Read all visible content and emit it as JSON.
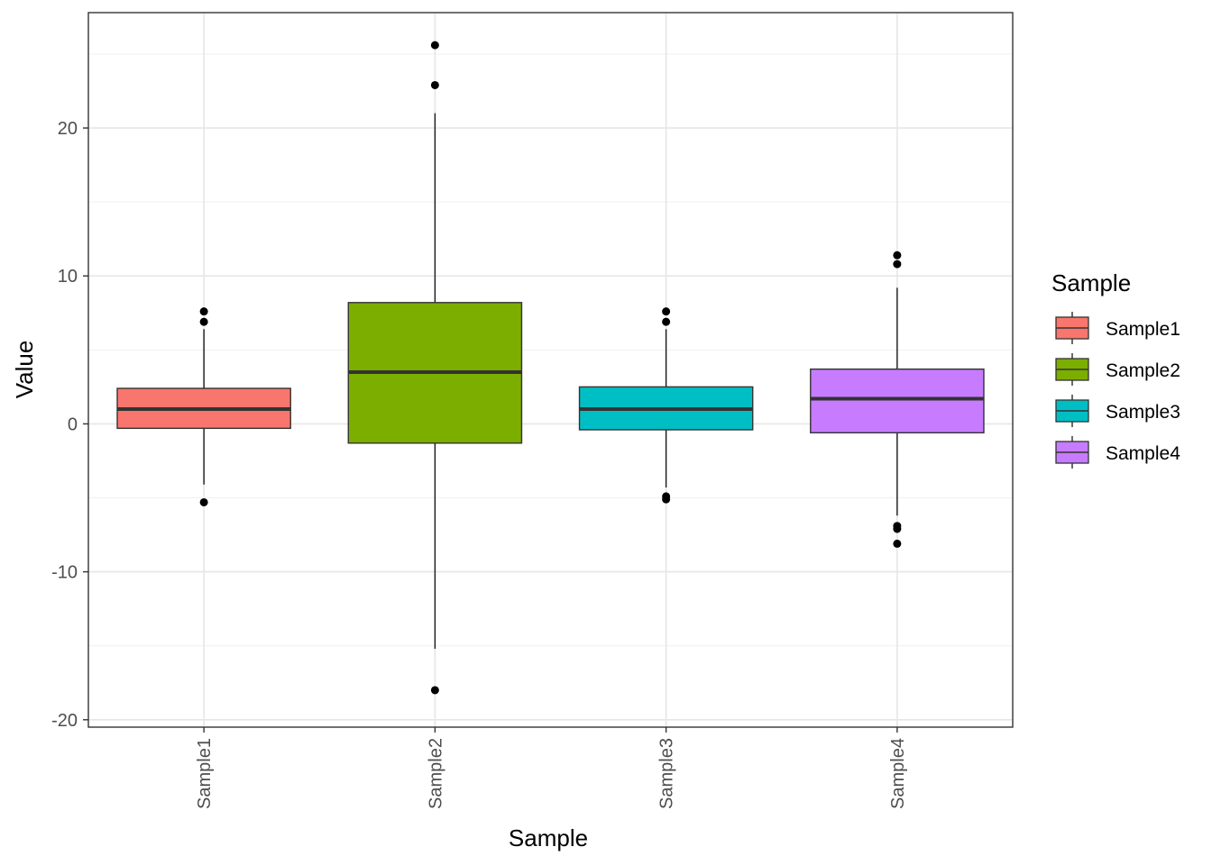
{
  "chart_data": {
    "type": "box",
    "xlabel": "Sample",
    "ylabel": "Value",
    "ylim": [
      -20.5,
      27.8
    ],
    "y_ticks": [
      "20",
      "10",
      "0",
      "-10",
      "-20"
    ],
    "y_tick_values": [
      20,
      10,
      0,
      -10,
      -20
    ],
    "grid": true,
    "legend": {
      "title": "Sample",
      "position": "right"
    },
    "categories": [
      "Sample1",
      "Sample2",
      "Sample3",
      "Sample4"
    ],
    "series": [
      {
        "name": "Sample1",
        "color": "#F8766D",
        "whisker_low": -4.1,
        "q1": -0.3,
        "median": 1.0,
        "q3": 2.4,
        "whisker_high": 6.4,
        "outliers": [
          7.6,
          6.9,
          -5.3
        ]
      },
      {
        "name": "Sample2",
        "color": "#7CAE00",
        "whisker_low": -15.2,
        "q1": -1.3,
        "median": 3.5,
        "q3": 8.2,
        "whisker_high": 21.0,
        "outliers": [
          25.6,
          22.9,
          -18.0
        ]
      },
      {
        "name": "Sample3",
        "color": "#00BFC4",
        "whisker_low": -4.3,
        "q1": -0.4,
        "median": 1.0,
        "q3": 2.5,
        "whisker_high": 6.4,
        "outliers": [
          7.6,
          6.9,
          -4.9,
          -5.1
        ]
      },
      {
        "name": "Sample4",
        "color": "#C77CFF",
        "whisker_low": -6.2,
        "q1": -0.6,
        "median": 1.7,
        "q3": 3.7,
        "whisker_high": 9.2,
        "outliers": [
          11.4,
          10.8,
          -6.9,
          -7.1,
          -8.1
        ]
      }
    ]
  }
}
